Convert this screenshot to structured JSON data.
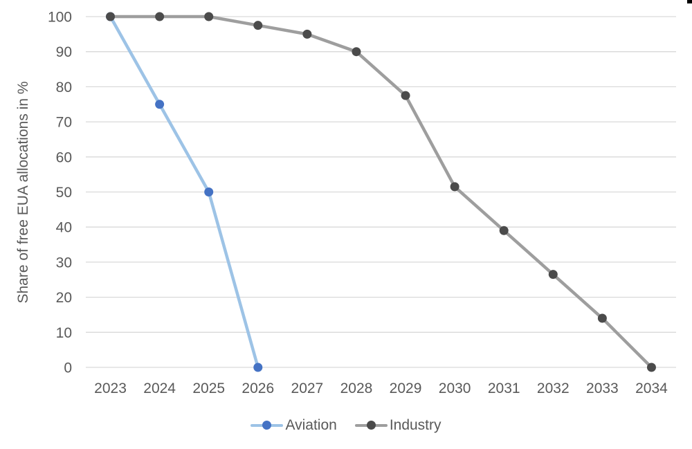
{
  "colors": {
    "background": "#FFFFFF",
    "text": "#595959",
    "grid": "#D9D9D9",
    "corner_mark": "#000000"
  },
  "chart_data": {
    "type": "line",
    "categories": [
      "2023",
      "2024",
      "2025",
      "2026",
      "2027",
      "2028",
      "2029",
      "2030",
      "2031",
      "2032",
      "2033",
      "2034"
    ],
    "series": [
      {
        "name": "Aviation",
        "line_color": "#9DC3E6",
        "marker_color": "#4472C4",
        "values": [
          100,
          75,
          50,
          0,
          null,
          null,
          null,
          null,
          null,
          null,
          null,
          null
        ]
      },
      {
        "name": "Industry",
        "line_color": "#9E9E9E",
        "marker_color": "#4B4B4B",
        "values": [
          100,
          100,
          100,
          97.5,
          95,
          90,
          77.5,
          51.5,
          39,
          26.5,
          14,
          0
        ]
      }
    ],
    "title": "",
    "xlabel": "",
    "ylabel": "Share of free EUA allocations in %",
    "ylim": [
      0,
      100
    ],
    "ytick_step": 10,
    "grid": "horizontal",
    "legend_position": "bottom-center",
    "marker_shape": "circle"
  }
}
